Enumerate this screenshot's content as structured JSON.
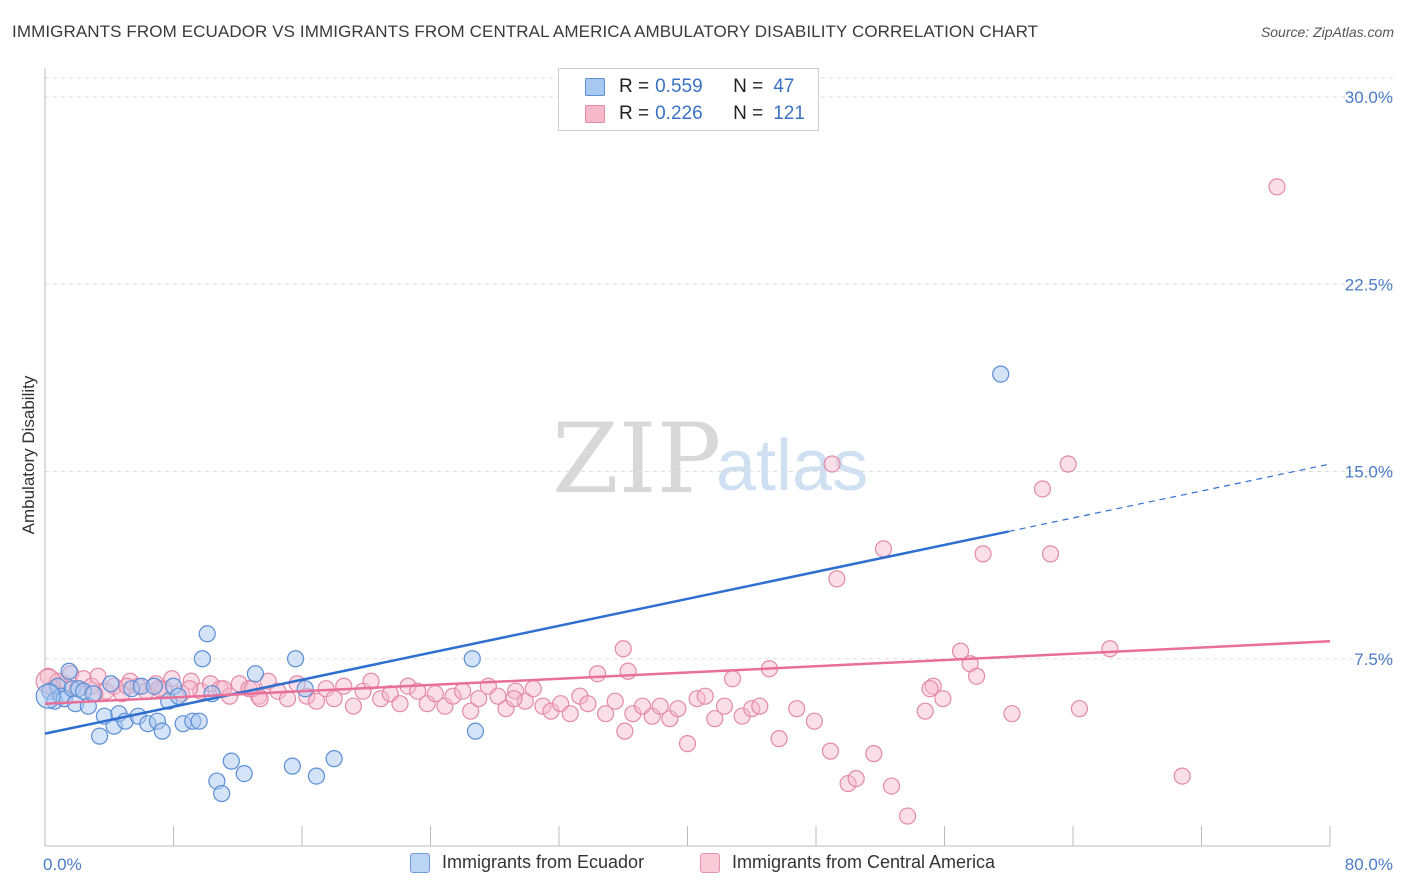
{
  "title": "IMMIGRANTS FROM ECUADOR VS IMMIGRANTS FROM CENTRAL AMERICA AMBULATORY DISABILITY CORRELATION CHART",
  "source": "Source: ZipAtlas.com",
  "watermark": {
    "zip": "ZIP",
    "atlas": "atlas"
  },
  "legend": {
    "series": [
      {
        "r_label": "R =",
        "r_value": "0.559",
        "n_label": "N =",
        "n_value": "47"
      },
      {
        "r_label": "R =",
        "r_value": "0.226",
        "n_label": "N =",
        "n_value": "121"
      }
    ]
  },
  "colors": {
    "ecuador_fill": "#a9c8f0",
    "ecuador_stroke": "#5b8fd6",
    "ecuador_line": "#2f6fcf",
    "central_fill": "#f6b8cb",
    "central_stroke": "#e38aa7",
    "central_line": "#e86f97",
    "grid": "#dddddd",
    "tick_text": "#4a7cc7"
  },
  "chart_data": {
    "type": "scatter",
    "ylabel": "Ambulatory Disability",
    "xlim": [
      0,
      80
    ],
    "ylim": [
      0,
      30
    ],
    "xtick_labels": [
      {
        "value": 0,
        "label": "0.0%"
      },
      {
        "value": 80,
        "label": "80.0%"
      }
    ],
    "ytick_labels": [
      {
        "value": 7.5,
        "label": "7.5%"
      },
      {
        "value": 15,
        "label": "15.0%"
      },
      {
        "value": 22.5,
        "label": "22.5%"
      },
      {
        "value": 30,
        "label": "30.0%"
      }
    ],
    "x_minor_ticks": [
      0,
      8,
      16,
      24,
      32,
      40,
      48,
      56,
      64,
      72,
      80
    ],
    "grid": true,
    "legend_position": "top-center",
    "series": [
      {
        "name": "Immigrants from Ecuador",
        "points": [
          [
            0.3,
            6.2
          ],
          [
            0.6,
            5.8
          ],
          [
            0.8,
            6.4
          ],
          [
            1.0,
            6.0
          ],
          [
            1.2,
            5.9
          ],
          [
            1.5,
            7.0
          ],
          [
            1.7,
            6.3
          ],
          [
            1.9,
            5.7
          ],
          [
            2.1,
            6.3
          ],
          [
            2.4,
            6.2
          ],
          [
            2.7,
            5.6
          ],
          [
            3.0,
            6.1
          ],
          [
            3.4,
            4.4
          ],
          [
            3.7,
            5.2
          ],
          [
            4.1,
            6.5
          ],
          [
            4.3,
            4.8
          ],
          [
            4.6,
            5.3
          ],
          [
            5.0,
            5.0
          ],
          [
            5.4,
            6.3
          ],
          [
            5.8,
            5.2
          ],
          [
            6.0,
            6.4
          ],
          [
            6.4,
            4.9
          ],
          [
            6.8,
            6.4
          ],
          [
            7.0,
            5.0
          ],
          [
            7.3,
            4.6
          ],
          [
            7.7,
            5.8
          ],
          [
            8.0,
            6.4
          ],
          [
            8.3,
            6.0
          ],
          [
            8.6,
            4.9
          ],
          [
            9.2,
            5.0
          ],
          [
            9.6,
            5.0
          ],
          [
            9.8,
            7.5
          ],
          [
            10.1,
            8.5
          ],
          [
            10.4,
            6.1
          ],
          [
            10.7,
            2.6
          ],
          [
            11.0,
            2.1
          ],
          [
            11.6,
            3.4
          ],
          [
            12.4,
            2.9
          ],
          [
            13.1,
            6.9
          ],
          [
            15.4,
            3.2
          ],
          [
            15.6,
            7.5
          ],
          [
            16.2,
            6.3
          ],
          [
            16.9,
            2.8
          ],
          [
            18.0,
            3.5
          ],
          [
            26.6,
            7.5
          ],
          [
            26.8,
            4.6
          ],
          [
            59.5,
            18.9
          ]
        ]
      },
      {
        "name": "Immigrants from Central America",
        "points": [
          [
            0.2,
            6.8
          ],
          [
            0.5,
            6.3
          ],
          [
            0.8,
            6.6
          ],
          [
            1.2,
            6.5
          ],
          [
            1.6,
            6.9
          ],
          [
            2.0,
            6.3
          ],
          [
            2.4,
            6.7
          ],
          [
            2.9,
            6.4
          ],
          [
            3.3,
            6.8
          ],
          [
            3.8,
            6.2
          ],
          [
            4.3,
            6.4
          ],
          [
            4.8,
            6.1
          ],
          [
            5.3,
            6.6
          ],
          [
            5.8,
            6.4
          ],
          [
            6.3,
            6.2
          ],
          [
            6.9,
            6.5
          ],
          [
            7.4,
            6.3
          ],
          [
            7.9,
            6.7
          ],
          [
            8.5,
            6.1
          ],
          [
            9.1,
            6.6
          ],
          [
            9.7,
            6.2
          ],
          [
            10.3,
            6.5
          ],
          [
            10.9,
            6.3
          ],
          [
            11.5,
            6.0
          ],
          [
            12.1,
            6.5
          ],
          [
            12.7,
            6.3
          ],
          [
            13.3,
            6.0
          ],
          [
            13.9,
            6.6
          ],
          [
            14.5,
            6.2
          ],
          [
            15.1,
            5.9
          ],
          [
            15.7,
            6.5
          ],
          [
            16.3,
            6.0
          ],
          [
            16.9,
            5.8
          ],
          [
            17.5,
            6.3
          ],
          [
            18.0,
            5.9
          ],
          [
            18.6,
            6.4
          ],
          [
            19.2,
            5.6
          ],
          [
            19.8,
            6.2
          ],
          [
            20.3,
            6.6
          ],
          [
            20.9,
            5.9
          ],
          [
            21.5,
            6.1
          ],
          [
            22.1,
            5.7
          ],
          [
            22.6,
            6.4
          ],
          [
            23.2,
            6.2
          ],
          [
            23.8,
            5.7
          ],
          [
            24.3,
            6.1
          ],
          [
            24.9,
            5.6
          ],
          [
            25.4,
            6.0
          ],
          [
            26.0,
            6.2
          ],
          [
            26.5,
            5.4
          ],
          [
            27.0,
            5.9
          ],
          [
            27.6,
            6.4
          ],
          [
            28.2,
            6.0
          ],
          [
            28.7,
            5.5
          ],
          [
            29.3,
            6.2
          ],
          [
            29.9,
            5.8
          ],
          [
            30.4,
            6.3
          ],
          [
            31.0,
            5.6
          ],
          [
            31.5,
            5.4
          ],
          [
            32.1,
            5.7
          ],
          [
            32.7,
            5.3
          ],
          [
            33.3,
            6.0
          ],
          [
            33.8,
            5.7
          ],
          [
            34.4,
            6.9
          ],
          [
            34.9,
            5.3
          ],
          [
            35.5,
            5.8
          ],
          [
            36.1,
            4.6
          ],
          [
            36.6,
            5.3
          ],
          [
            37.2,
            5.6
          ],
          [
            37.8,
            5.2
          ],
          [
            38.3,
            5.6
          ],
          [
            38.9,
            5.1
          ],
          [
            39.4,
            5.5
          ],
          [
            40.0,
            4.1
          ],
          [
            40.6,
            5.9
          ],
          [
            41.1,
            6.0
          ],
          [
            41.7,
            5.1
          ],
          [
            42.3,
            5.6
          ],
          [
            42.8,
            6.7
          ],
          [
            43.4,
            5.2
          ],
          [
            44.0,
            5.5
          ],
          [
            44.5,
            5.6
          ],
          [
            45.1,
            7.1
          ],
          [
            45.7,
            4.3
          ],
          [
            46.8,
            5.5
          ],
          [
            47.9,
            5.0
          ],
          [
            48.9,
            3.8
          ],
          [
            50.0,
            2.5
          ],
          [
            50.5,
            2.7
          ],
          [
            51.6,
            3.7
          ],
          [
            52.7,
            2.4
          ],
          [
            53.7,
            1.2
          ],
          [
            54.8,
            5.4
          ],
          [
            55.3,
            6.4
          ],
          [
            55.9,
            5.9
          ],
          [
            57.0,
            7.8
          ],
          [
            57.6,
            7.3
          ],
          [
            58.0,
            6.8
          ],
          [
            60.2,
            5.3
          ],
          [
            66.3,
            7.9
          ],
          [
            70.8,
            2.8
          ],
          [
            36.0,
            7.9
          ],
          [
            49.0,
            15.3
          ],
          [
            52.2,
            11.9
          ],
          [
            49.3,
            10.7
          ],
          [
            58.4,
            11.7
          ],
          [
            62.6,
            11.7
          ],
          [
            62.1,
            14.3
          ],
          [
            63.7,
            15.3
          ],
          [
            64.4,
            5.5
          ],
          [
            76.7,
            26.4
          ],
          [
            36.3,
            7.0
          ],
          [
            29.2,
            5.9
          ],
          [
            12.9,
            6.3
          ],
          [
            9.0,
            6.3
          ],
          [
            3.1,
            6.1
          ],
          [
            5.1,
            6.4
          ],
          [
            7.1,
            6.3
          ],
          [
            11.1,
            6.3
          ],
          [
            13.4,
            5.9
          ],
          [
            55.1,
            6.3
          ]
        ]
      }
    ],
    "trend_lines": [
      {
        "series": "Immigrants from Ecuador",
        "x_start": 0,
        "y_start": 4.5,
        "x_solid_end": 60,
        "y_solid_end": 12.6,
        "x_end": 80,
        "y_end": 15.3
      },
      {
        "series": "Immigrants from Central America",
        "x_start": 0,
        "y_start": 5.7,
        "x_end": 80,
        "y_end": 8.2
      }
    ]
  }
}
